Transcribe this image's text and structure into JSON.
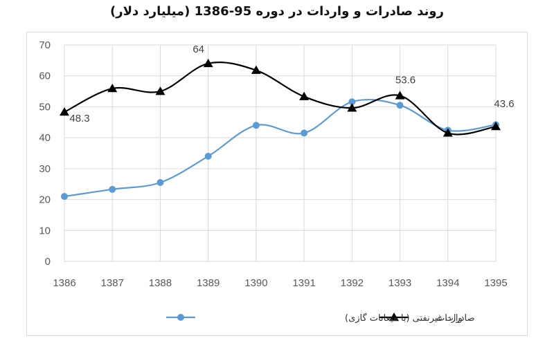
{
  "chart_data": {
    "type": "line",
    "title": "روند صادرات و واردات در دوره 95-1386 (میلیارد دلار)",
    "x": [
      "1386",
      "1387",
      "1388",
      "1389",
      "1390",
      "1391",
      "1392",
      "1393",
      "1394",
      "1395"
    ],
    "ylim": [
      0,
      70
    ],
    "yticks": [
      0,
      10,
      20,
      30,
      40,
      50,
      60,
      70
    ],
    "grid": true,
    "legend_position": "bottom",
    "series": [
      {
        "name": "صادرات غیرنفتی (با میعانات گازی)",
        "color": "#5b9bd5",
        "marker": "circle",
        "values": [
          21,
          23.3,
          25.5,
          34,
          44,
          41.5,
          51.6,
          50.5,
          42.4,
          44.2
        ],
        "data_labels": {}
      },
      {
        "name": "واردات",
        "color": "#000000",
        "marker": "triangle",
        "values": [
          48.3,
          55.9,
          55,
          64,
          61.8,
          53.3,
          49.6,
          53.6,
          41.5,
          43.6
        ],
        "data_labels": {
          "0": "48.3",
          "3": "64",
          "7": "53.6",
          "9": "43.6"
        }
      }
    ]
  }
}
